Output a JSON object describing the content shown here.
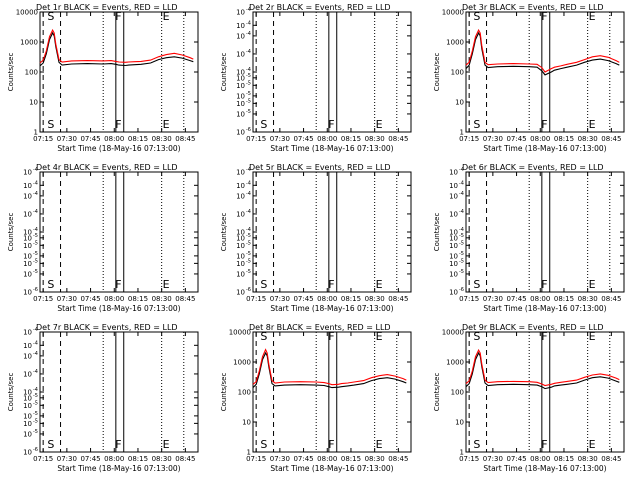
{
  "chart_data": [
    {
      "type": "line",
      "title": "Det 1r BLACK = Events, RED = LLD",
      "xlabel": "Start Time (18-May-16 07:13:00)",
      "ylabel": "Counts/sec",
      "x_tick_labels": [
        "07:15",
        "07:30",
        "07:45",
        "08:00",
        "08:15",
        "08:30",
        "08:45"
      ],
      "x_ticks_min": [
        2,
        17,
        32,
        47,
        62,
        77,
        92
      ],
      "xlim_min": [
        0,
        100
      ],
      "yscale": "log",
      "ylim": [
        1,
        10000
      ],
      "y_tick_labels": [
        "1",
        "10",
        "100",
        "1000",
        "10000"
      ],
      "y_tick_values": [
        1,
        10,
        100,
        1000,
        10000
      ],
      "flags": [
        {
          "label": "S",
          "x_min": 4
        },
        {
          "label": "F",
          "x_min": 47
        },
        {
          "label": "E",
          "x_min": 77
        }
      ],
      "series": [
        {
          "name": "Events",
          "color": "#000000",
          "x_min": [
            0,
            2,
            4,
            6,
            8,
            9,
            10,
            12,
            14,
            20,
            30,
            40,
            45,
            48,
            50,
            54,
            56,
            60,
            64,
            70,
            75,
            80,
            85,
            90,
            95,
            97
          ],
          "y": [
            160,
            200,
            400,
            1200,
            2000,
            1600,
            700,
            210,
            170,
            185,
            190,
            185,
            190,
            180,
            170,
            165,
            170,
            175,
            180,
            200,
            260,
            300,
            320,
            290,
            240,
            220
          ]
        },
        {
          "name": "LLD",
          "color": "#ff0000",
          "x_min": [
            0,
            2,
            4,
            6,
            8,
            9,
            10,
            12,
            14,
            20,
            30,
            40,
            45,
            48,
            50,
            54,
            56,
            60,
            64,
            70,
            75,
            80,
            85,
            90,
            95,
            97
          ],
          "y": [
            200,
            250,
            500,
            1500,
            2500,
            2000,
            850,
            260,
            215,
            235,
            240,
            235,
            240,
            225,
            215,
            210,
            215,
            220,
            225,
            250,
            320,
            380,
            420,
            370,
            300,
            270
          ]
        }
      ]
    },
    {
      "type": "line",
      "title": "Det 2r BLACK = Events, RED = LLD",
      "xlabel": "Start Time (18-May-16 07:13:00)",
      "ylabel": "Counts/sec",
      "x_tick_labels": [
        "07:15",
        "07:30",
        "07:45",
        "08:00",
        "08:15",
        "08:30",
        "08:45"
      ],
      "x_ticks_min": [
        2,
        17,
        32,
        47,
        62,
        77,
        92
      ],
      "xlim_min": [
        0,
        100
      ],
      "yscale": "log",
      "ylim": [
        1e-06,
        0.0001
      ],
      "y_tick_labels": [
        "10",
        "10",
        "10",
        "10",
        "10",
        "10",
        "10",
        "10",
        "10",
        "10",
        "10"
      ],
      "y_tick_sups": [
        "-6",
        "-5",
        "-5",
        "-5",
        "-5",
        "-5",
        "-4",
        "-4",
        "-4",
        "-4",
        "-4"
      ],
      "y_tick_values": [
        1e-06,
        2e-06,
        3e-06,
        4e-06,
        6e-06,
        8e-06,
        1e-05,
        2e-05,
        4e-05,
        6e-05,
        0.0001
      ],
      "flags": [
        {
          "label": "S",
          "x_min": 4
        },
        {
          "label": "F",
          "x_min": 47
        },
        {
          "label": "E",
          "x_min": 77
        }
      ],
      "series": []
    },
    {
      "type": "line",
      "title": "Det 3r BLACK = Events, RED = LLD",
      "xlabel": "Start Time (18-May-16 07:13:00)",
      "ylabel": "Counts/sec",
      "x_tick_labels": [
        "07:15",
        "07:30",
        "07:45",
        "08:00",
        "08:15",
        "08:30",
        "08:45"
      ],
      "x_ticks_min": [
        2,
        17,
        32,
        47,
        62,
        77,
        92
      ],
      "xlim_min": [
        0,
        100
      ],
      "yscale": "log",
      "ylim": [
        1,
        10000
      ],
      "y_tick_labels": [
        "1",
        "10",
        "100",
        "1000",
        "10000"
      ],
      "y_tick_values": [
        1,
        10,
        100,
        1000,
        10000
      ],
      "flags": [
        {
          "label": "S",
          "x_min": 4
        },
        {
          "label": "F",
          "x_min": 47
        },
        {
          "label": "E",
          "x_min": 77
        }
      ],
      "series": [
        {
          "name": "Events",
          "color": "#000000",
          "x_min": [
            0,
            2,
            4,
            6,
            8,
            9,
            10,
            12,
            14,
            20,
            30,
            40,
            45,
            48,
            50,
            54,
            56,
            60,
            64,
            70,
            75,
            80,
            85,
            90,
            95,
            97
          ],
          "y": [
            130,
            170,
            400,
            1200,
            2000,
            1600,
            600,
            170,
            140,
            150,
            155,
            150,
            145,
            110,
            80,
            100,
            115,
            130,
            145,
            170,
            210,
            250,
            270,
            240,
            190,
            170
          ]
        },
        {
          "name": "LLD",
          "color": "#ff0000",
          "x_min": [
            0,
            2,
            4,
            6,
            8,
            9,
            10,
            12,
            14,
            20,
            30,
            40,
            45,
            48,
            50,
            54,
            56,
            60,
            64,
            70,
            75,
            80,
            85,
            90,
            95,
            97
          ],
          "y": [
            170,
            210,
            500,
            1500,
            2500,
            2000,
            750,
            210,
            175,
            185,
            190,
            185,
            180,
            140,
            100,
            130,
            145,
            160,
            180,
            210,
            260,
            320,
            350,
            310,
            240,
            210
          ]
        }
      ]
    },
    {
      "type": "line",
      "title": "Det 4r BLACK = Events, RED = LLD",
      "xlabel": "Start Time (18-May-16 07:13:00)",
      "ylabel": "Counts/sec",
      "x_tick_labels": [
        "07:15",
        "07:30",
        "07:45",
        "08:00",
        "08:15",
        "08:30",
        "08:45"
      ],
      "x_ticks_min": [
        2,
        17,
        32,
        47,
        62,
        77,
        92
      ],
      "xlim_min": [
        0,
        100
      ],
      "yscale": "log",
      "ylim": [
        1e-06,
        0.0001
      ],
      "y_tick_labels": [
        "10",
        "10",
        "10",
        "10",
        "10",
        "10",
        "10",
        "10",
        "10",
        "10",
        "10"
      ],
      "y_tick_sups": [
        "-6",
        "-5",
        "-5",
        "-5",
        "-5",
        "-5",
        "-4",
        "-4",
        "-4",
        "-4",
        "-4"
      ],
      "y_tick_values": [
        1e-06,
        2e-06,
        3e-06,
        4e-06,
        6e-06,
        8e-06,
        1e-05,
        2e-05,
        4e-05,
        6e-05,
        0.0001
      ],
      "flags": [
        {
          "label": "S",
          "x_min": 4
        },
        {
          "label": "F",
          "x_min": 47
        },
        {
          "label": "E",
          "x_min": 77
        }
      ],
      "series": []
    },
    {
      "type": "line",
      "title": "Det 5r BLACK = Events, RED = LLD",
      "xlabel": "Start Time (18-May-16 07:13:00)",
      "ylabel": "Counts/sec",
      "x_tick_labels": [
        "07:15",
        "07:30",
        "07:45",
        "08:00",
        "08:15",
        "08:30",
        "08:45"
      ],
      "x_ticks_min": [
        2,
        17,
        32,
        47,
        62,
        77,
        92
      ],
      "xlim_min": [
        0,
        100
      ],
      "yscale": "log",
      "ylim": [
        1e-06,
        0.0001
      ],
      "y_tick_labels": [
        "10",
        "10",
        "10",
        "10",
        "10",
        "10",
        "10",
        "10",
        "10",
        "10",
        "10"
      ],
      "y_tick_sups": [
        "-6",
        "-5",
        "-5",
        "-5",
        "-5",
        "-5",
        "-4",
        "-4",
        "-4",
        "-4",
        "-4"
      ],
      "y_tick_values": [
        1e-06,
        2e-06,
        3e-06,
        4e-06,
        6e-06,
        8e-06,
        1e-05,
        2e-05,
        4e-05,
        6e-05,
        0.0001
      ],
      "flags": [
        {
          "label": "S",
          "x_min": 4
        },
        {
          "label": "F",
          "x_min": 47
        },
        {
          "label": "E",
          "x_min": 77
        }
      ],
      "series": []
    },
    {
      "type": "line",
      "title": "Det 6r BLACK = Events, RED = LLD",
      "xlabel": "Start Time (18-May-16 07:13:00)",
      "ylabel": "Counts/sec",
      "x_tick_labels": [
        "07:15",
        "07:30",
        "07:45",
        "08:00",
        "08:15",
        "08:30",
        "08:45"
      ],
      "x_ticks_min": [
        2,
        17,
        32,
        47,
        62,
        77,
        92
      ],
      "xlim_min": [
        0,
        100
      ],
      "yscale": "log",
      "ylim": [
        1e-06,
        0.0001
      ],
      "y_tick_labels": [
        "10",
        "10",
        "10",
        "10",
        "10",
        "10",
        "10",
        "10",
        "10",
        "10",
        "10"
      ],
      "y_tick_sups": [
        "-6",
        "-5",
        "-5",
        "-5",
        "-5",
        "-5",
        "-4",
        "-4",
        "-4",
        "-4",
        "-4"
      ],
      "y_tick_values": [
        1e-06,
        2e-06,
        3e-06,
        4e-06,
        6e-06,
        8e-06,
        1e-05,
        2e-05,
        4e-05,
        6e-05,
        0.0001
      ],
      "flags": [
        {
          "label": "S",
          "x_min": 4
        },
        {
          "label": "F",
          "x_min": 47
        },
        {
          "label": "E",
          "x_min": 77
        }
      ],
      "series": []
    },
    {
      "type": "line",
      "title": "Det 7r BLACK = Events, RED = LLD",
      "xlabel": "Start Time (18-May-16 07:13:00)",
      "ylabel": "Counts/sec",
      "x_tick_labels": [
        "07:15",
        "07:30",
        "07:45",
        "08:00",
        "08:15",
        "08:30",
        "08:45"
      ],
      "x_ticks_min": [
        2,
        17,
        32,
        47,
        62,
        77,
        92
      ],
      "xlim_min": [
        0,
        100
      ],
      "yscale": "log",
      "ylim": [
        1e-06,
        0.0001
      ],
      "y_tick_labels": [
        "10",
        "10",
        "10",
        "10",
        "10",
        "10",
        "10",
        "10",
        "10",
        "10",
        "10"
      ],
      "y_tick_sups": [
        "-6",
        "-5",
        "-5",
        "-5",
        "-5",
        "-5",
        "-4",
        "-4",
        "-4",
        "-4",
        "-4"
      ],
      "y_tick_values": [
        1e-06,
        2e-06,
        3e-06,
        4e-06,
        6e-06,
        8e-06,
        1e-05,
        2e-05,
        4e-05,
        6e-05,
        0.0001
      ],
      "flags": [
        {
          "label": "S",
          "x_min": 4
        },
        {
          "label": "F",
          "x_min": 47
        },
        {
          "label": "E",
          "x_min": 77
        }
      ],
      "series": []
    },
    {
      "type": "line",
      "title": "Det 8r BLACK = Events, RED = LLD",
      "xlabel": "Start Time (18-May-16 07:13:00)",
      "ylabel": "Counts/sec",
      "x_tick_labels": [
        "07:15",
        "07:30",
        "07:45",
        "08:00",
        "08:15",
        "08:30",
        "08:45"
      ],
      "x_ticks_min": [
        2,
        17,
        32,
        47,
        62,
        77,
        92
      ],
      "xlim_min": [
        0,
        100
      ],
      "yscale": "log",
      "ylim": [
        1,
        10000
      ],
      "y_tick_labels": [
        "1",
        "10",
        "100",
        "1000",
        "10000"
      ],
      "y_tick_values": [
        1,
        10,
        100,
        1000,
        10000
      ],
      "flags": [
        {
          "label": "S",
          "x_min": 4
        },
        {
          "label": "F",
          "x_min": 47
        },
        {
          "label": "E",
          "x_min": 77
        }
      ],
      "series": [
        {
          "name": "Events",
          "color": "#000000",
          "x_min": [
            0,
            2,
            4,
            6,
            8,
            9,
            10,
            12,
            14,
            20,
            30,
            40,
            45,
            48,
            50,
            54,
            56,
            60,
            64,
            70,
            75,
            80,
            85,
            90,
            95,
            97
          ],
          "y": [
            140,
            180,
            400,
            1200,
            2000,
            1600,
            700,
            190,
            160,
            170,
            175,
            170,
            165,
            150,
            140,
            145,
            150,
            160,
            170,
            190,
            240,
            280,
            300,
            270,
            220,
            200
          ]
        },
        {
          "name": "LLD",
          "color": "#ff0000",
          "x_min": [
            0,
            2,
            4,
            6,
            8,
            9,
            10,
            12,
            14,
            20,
            30,
            40,
            45,
            48,
            50,
            54,
            56,
            60,
            64,
            70,
            75,
            80,
            85,
            90,
            95,
            97
          ],
          "y": [
            180,
            220,
            500,
            1500,
            2600,
            2000,
            850,
            240,
            200,
            215,
            220,
            215,
            205,
            190,
            175,
            180,
            190,
            200,
            215,
            240,
            300,
            350,
            380,
            340,
            280,
            250
          ]
        }
      ]
    },
    {
      "type": "line",
      "title": "Det 9r BLACK = Events, RED = LLD",
      "xlabel": "Start Time (18-May-16 07:13:00)",
      "ylabel": "Counts/sec",
      "x_tick_labels": [
        "07:15",
        "07:30",
        "07:45",
        "08:00",
        "08:15",
        "08:30",
        "08:45"
      ],
      "x_ticks_min": [
        2,
        17,
        32,
        47,
        62,
        77,
        92
      ],
      "xlim_min": [
        0,
        100
      ],
      "yscale": "log",
      "ylim": [
        1,
        10000
      ],
      "y_tick_labels": [
        "1",
        "10",
        "100",
        "1000",
        "10000"
      ],
      "y_tick_values": [
        1,
        10,
        100,
        1000,
        10000
      ],
      "flags": [
        {
          "label": "S",
          "x_min": 4
        },
        {
          "label": "F",
          "x_min": 47
        },
        {
          "label": "E",
          "x_min": 77
        }
      ],
      "series": [
        {
          "name": "Events",
          "color": "#000000",
          "x_min": [
            0,
            2,
            4,
            6,
            8,
            9,
            10,
            12,
            14,
            20,
            30,
            40,
            45,
            48,
            50,
            54,
            56,
            60,
            64,
            70,
            75,
            80,
            85,
            90,
            95,
            97
          ],
          "y": [
            150,
            190,
            400,
            1200,
            2000,
            1600,
            700,
            200,
            165,
            175,
            180,
            175,
            170,
            150,
            130,
            145,
            160,
            170,
            180,
            200,
            250,
            300,
            320,
            290,
            230,
            210
          ]
        },
        {
          "name": "LLD",
          "color": "#ff0000",
          "x_min": [
            0,
            2,
            4,
            6,
            8,
            9,
            10,
            12,
            14,
            20,
            30,
            40,
            45,
            48,
            50,
            54,
            56,
            60,
            64,
            70,
            75,
            80,
            85,
            90,
            95,
            97
          ],
          "y": [
            190,
            235,
            500,
            1500,
            2500,
            2000,
            850,
            250,
            205,
            220,
            225,
            220,
            210,
            185,
            165,
            180,
            195,
            210,
            225,
            250,
            310,
            370,
            400,
            360,
            290,
            260
          ]
        }
      ]
    }
  ]
}
